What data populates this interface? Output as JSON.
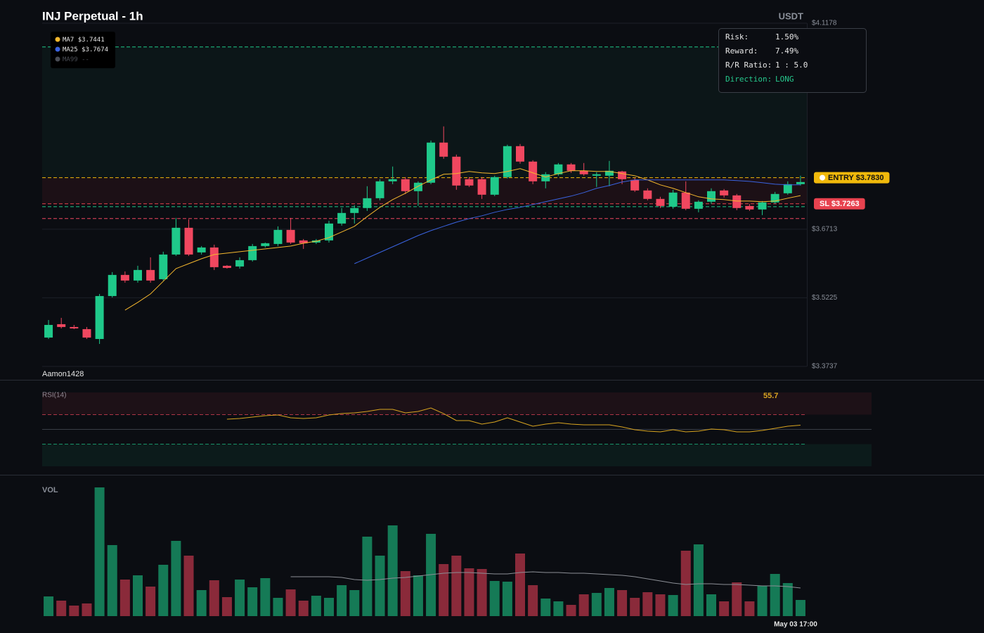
{
  "header": {
    "title": "INJ Perpetual - 1h",
    "currency": "USDT"
  },
  "watermark": "Aamon1428",
  "risk_panel": {
    "rows": [
      {
        "label": "Risk:",
        "value": "1.50%"
      },
      {
        "label": "Reward:",
        "value": "7.49%"
      },
      {
        "label": "R/R Ratio:",
        "value": "1 : 5.0"
      },
      {
        "label": "Direction:",
        "value": "LONG",
        "color": "#26c98e"
      }
    ]
  },
  "chart_data": [
    {
      "type": "candlestick",
      "ylim": [
        3.3737,
        4.1178
      ],
      "yticks": [
        {
          "value": 4.1178,
          "label": "$4.1178"
        },
        {
          "value": 3.6713,
          "label": "$3.6713"
        },
        {
          "value": 3.5225,
          "label": "$3.5225"
        },
        {
          "value": 3.3737,
          "label": "$3.3737"
        }
      ],
      "grid": true,
      "up_color": "#1fc98a",
      "down_color": "#f0475f",
      "open": [
        3.4363,
        3.4653,
        3.4592,
        3.4546,
        3.4332,
        3.5263,
        3.5721,
        3.5599,
        3.5828,
        3.5629,
        3.6163,
        3.6743,
        3.6209,
        3.6316,
        3.5919,
        3.5904,
        3.6041,
        3.6346,
        3.6392,
        3.6697,
        3.6469,
        3.6423,
        3.6469,
        3.6835,
        3.7064,
        3.7171,
        3.7384,
        3.775,
        3.7796,
        3.7537,
        3.772,
        3.859,
        3.8284,
        3.7796,
        3.7796,
        3.746,
        3.7842,
        3.8513,
        3.8178,
        3.775,
        3.7903,
        3.8117,
        3.7979,
        3.7872,
        3.7872,
        3.7964,
        3.7781,
        3.7552,
        3.7369,
        3.7201,
        3.7506,
        3.7155,
        3.7308,
        3.7552,
        3.7445,
        3.7216,
        3.714,
        3.7293,
        3.7491,
        3.7689
      ],
      "high": [
        3.4744,
        3.479,
        3.4637,
        3.4592,
        3.5309,
        3.5782,
        3.5797,
        3.5919,
        3.6102,
        3.6224,
        3.6957,
        3.6926,
        3.6346,
        3.6377,
        3.5934,
        3.6102,
        3.6392,
        3.6423,
        3.6774,
        3.6957,
        3.6499,
        3.6499,
        3.6896,
        3.7171,
        3.7232,
        3.7644,
        3.7796,
        3.8071,
        3.7842,
        3.775,
        3.8635,
        3.8941,
        3.833,
        3.7842,
        3.7842,
        3.7872,
        3.8544,
        3.8559,
        3.8208,
        3.7949,
        3.8147,
        3.8147,
        3.8147,
        3.7949,
        3.8193,
        3.7979,
        3.7827,
        3.7598,
        3.7415,
        3.7567,
        3.775,
        3.7338,
        3.7598,
        3.7583,
        3.7476,
        3.7262,
        3.7323,
        3.7521,
        3.775,
        3.7872
      ],
      "low": [
        3.4332,
        3.4561,
        3.4546,
        3.4332,
        3.4225,
        3.5232,
        3.5553,
        3.5553,
        3.5553,
        3.5599,
        3.6133,
        3.6133,
        3.6163,
        3.5828,
        3.5858,
        3.5858,
        3.6011,
        3.6316,
        3.6346,
        3.6392,
        3.6285,
        3.6392,
        3.6423,
        3.6789,
        3.6835,
        3.7109,
        3.7338,
        3.7689,
        3.7476,
        3.7216,
        3.7689,
        3.8239,
        3.7567,
        3.7628,
        3.7369,
        3.743,
        3.7811,
        3.8132,
        3.7689,
        3.7598,
        3.7872,
        3.7934,
        3.7872,
        3.7628,
        3.7644,
        3.7689,
        3.7521,
        3.7338,
        3.7171,
        3.7155,
        3.7125,
        3.7079,
        3.7262,
        3.7399,
        3.7125,
        3.7109,
        3.7018,
        3.7262,
        3.746,
        3.7659
      ],
      "close": [
        3.4637,
        3.4592,
        3.4561,
        3.4363,
        3.5263,
        3.5721,
        3.5599,
        3.5828,
        3.5599,
        3.6163,
        3.6743,
        3.6163,
        3.6316,
        3.5889,
        3.5873,
        3.6041,
        3.6346,
        3.6408,
        3.6697,
        3.6423,
        3.6408,
        3.6469,
        3.6835,
        3.7064,
        3.7171,
        3.7384,
        3.775,
        3.7796,
        3.7537,
        3.772,
        3.859,
        3.8284,
        3.7659,
        3.7659,
        3.746,
        3.7842,
        3.8513,
        3.8178,
        3.775,
        3.7903,
        3.8117,
        3.7979,
        3.7903,
        3.7903,
        3.7979,
        3.7796,
        3.7552,
        3.7369,
        3.7216,
        3.7506,
        3.7155,
        3.7308,
        3.7537,
        3.7445,
        3.7171,
        3.714,
        3.7293,
        3.7476,
        3.7689,
        3.7735
      ],
      "series": [
        {
          "name": "MA7",
          "color": "#f5b82e",
          "value_label": "$3.7441",
          "values": [
            null,
            null,
            null,
            null,
            null,
            null,
            3.4958,
            3.5126,
            3.5309,
            3.5583,
            3.5858,
            3.5965,
            3.6072,
            3.6163,
            3.6194,
            3.6224,
            3.6255,
            3.6285,
            3.6316,
            3.6346,
            3.6408,
            3.6453,
            3.653,
            3.6652,
            3.6774,
            3.6987,
            3.7186,
            3.7354,
            3.7491,
            3.7644,
            3.7781,
            3.7903,
            3.7918,
            3.7964,
            3.7934,
            3.7918,
            3.7964,
            3.8025,
            3.7934,
            3.7842,
            3.7918,
            3.7979,
            3.7979,
            3.7964,
            3.7964,
            3.7918,
            3.7872,
            3.7781,
            3.7674,
            3.7598,
            3.7506,
            3.7415,
            3.7369,
            3.7354,
            3.7323,
            3.7323,
            3.7308,
            3.7323,
            3.7384,
            3.7441
          ]
        },
        {
          "name": "MA25",
          "color": "#3a63e0",
          "value_label": "$3.7674",
          "values": [
            null,
            null,
            null,
            null,
            null,
            null,
            null,
            null,
            null,
            null,
            null,
            null,
            null,
            null,
            null,
            null,
            null,
            null,
            null,
            null,
            null,
            null,
            null,
            null,
            3.5965,
            3.6087,
            3.6209,
            3.6331,
            3.6453,
            3.6575,
            3.6682,
            3.6774,
            3.6865,
            3.6942,
            3.7003,
            3.7079,
            3.714,
            3.7186,
            3.7247,
            3.7308,
            3.7369,
            3.743,
            3.7506,
            3.7598,
            3.7659,
            3.7735,
            3.7781,
            3.7781,
            3.7781,
            3.7781,
            3.7781,
            3.7781,
            3.7781,
            3.7781,
            3.7766,
            3.775,
            3.772,
            3.7689,
            3.7674,
            3.7674
          ]
        },
        {
          "name": "MA99",
          "color": "#4a4d55",
          "value_label": "--"
        }
      ],
      "entry": {
        "label": "ENTRY $3.7830",
        "value": 3.783,
        "color": "#f0b90b"
      },
      "stop_loss": {
        "label": "SL $3.7263",
        "value": 3.7263,
        "color": "#e8424f"
      },
      "take_profit": {
        "value": 4.0663,
        "color": "#1fc98a"
      },
      "levels": [
        {
          "value": 3.7201,
          "color": "#1fc98a"
        },
        {
          "value": 3.6942,
          "color": "#f0475f"
        }
      ]
    },
    {
      "type": "line",
      "title": "RSI(14)",
      "ylim": [
        0,
        100
      ],
      "levels": [
        70,
        50,
        30
      ],
      "series": [
        {
          "color": "#d9a520",
          "values": [
            null,
            null,
            null,
            null,
            null,
            null,
            null,
            null,
            null,
            null,
            null,
            null,
            null,
            null,
            63.8,
            64.8,
            66.7,
            68.6,
            69.5,
            65.7,
            64.8,
            65.7,
            69.5,
            71.4,
            72.4,
            74.3,
            77.1,
            77.1,
            72.4,
            74.3,
            79.0,
            71.4,
            61.9,
            61.9,
            57.1,
            60.0,
            65.7,
            60.0,
            54.3,
            57.1,
            59.0,
            57.1,
            56.2,
            56.2,
            56.2,
            53.3,
            49.5,
            47.6,
            46.7,
            49.5,
            46.7,
            47.6,
            50.5,
            49.5,
            46.7,
            46.7,
            48.6,
            51.4,
            54.3,
            55.7
          ]
        }
      ]
    },
    {
      "type": "bar",
      "title": "VOL",
      "ylim": [
        0,
        190
      ],
      "categories": [
        null,
        null,
        null,
        null,
        null,
        null,
        null,
        null,
        null,
        null,
        null,
        null,
        null,
        null,
        null,
        null,
        null,
        null,
        null,
        null,
        null,
        null,
        null,
        null,
        null,
        null,
        null,
        null,
        null,
        null,
        null,
        null,
        null,
        null,
        null,
        null,
        null,
        null,
        null,
        null,
        null,
        null,
        null,
        null,
        null,
        null,
        null,
        null,
        null,
        null,
        null,
        null,
        null,
        null,
        null,
        null,
        null,
        null,
        null,
        "May 03 17:00"
      ],
      "values": [
        28,
        22,
        15,
        18,
        183,
        101,
        52,
        58,
        42,
        73,
        107,
        86,
        37,
        51,
        27,
        52,
        41,
        54,
        26,
        38,
        22,
        29,
        26,
        44,
        37,
        113,
        86,
        129,
        64,
        58,
        117,
        74,
        86,
        68,
        67,
        50,
        49,
        89,
        44,
        25,
        21,
        16,
        31,
        33,
        40,
        37,
        26,
        34,
        31,
        30,
        93,
        102,
        31,
        21,
        48,
        21,
        43,
        60,
        47,
        23
      ],
      "up_color": "#157a56",
      "down_color": "#8a2a3a",
      "series": [
        {
          "color": "#8c8f96",
          "values": [
            null,
            null,
            null,
            null,
            null,
            null,
            null,
            null,
            null,
            null,
            null,
            null,
            null,
            null,
            null,
            null,
            null,
            null,
            null,
            56,
            56,
            56,
            56,
            55,
            52,
            51,
            52,
            54,
            55,
            57,
            59,
            61,
            62,
            62,
            61,
            60,
            60,
            62,
            63,
            62,
            62,
            61,
            61,
            60,
            59,
            58,
            56,
            53,
            50,
            47,
            45,
            46,
            46,
            45,
            45,
            44,
            43,
            43,
            42,
            40
          ]
        }
      ]
    }
  ]
}
